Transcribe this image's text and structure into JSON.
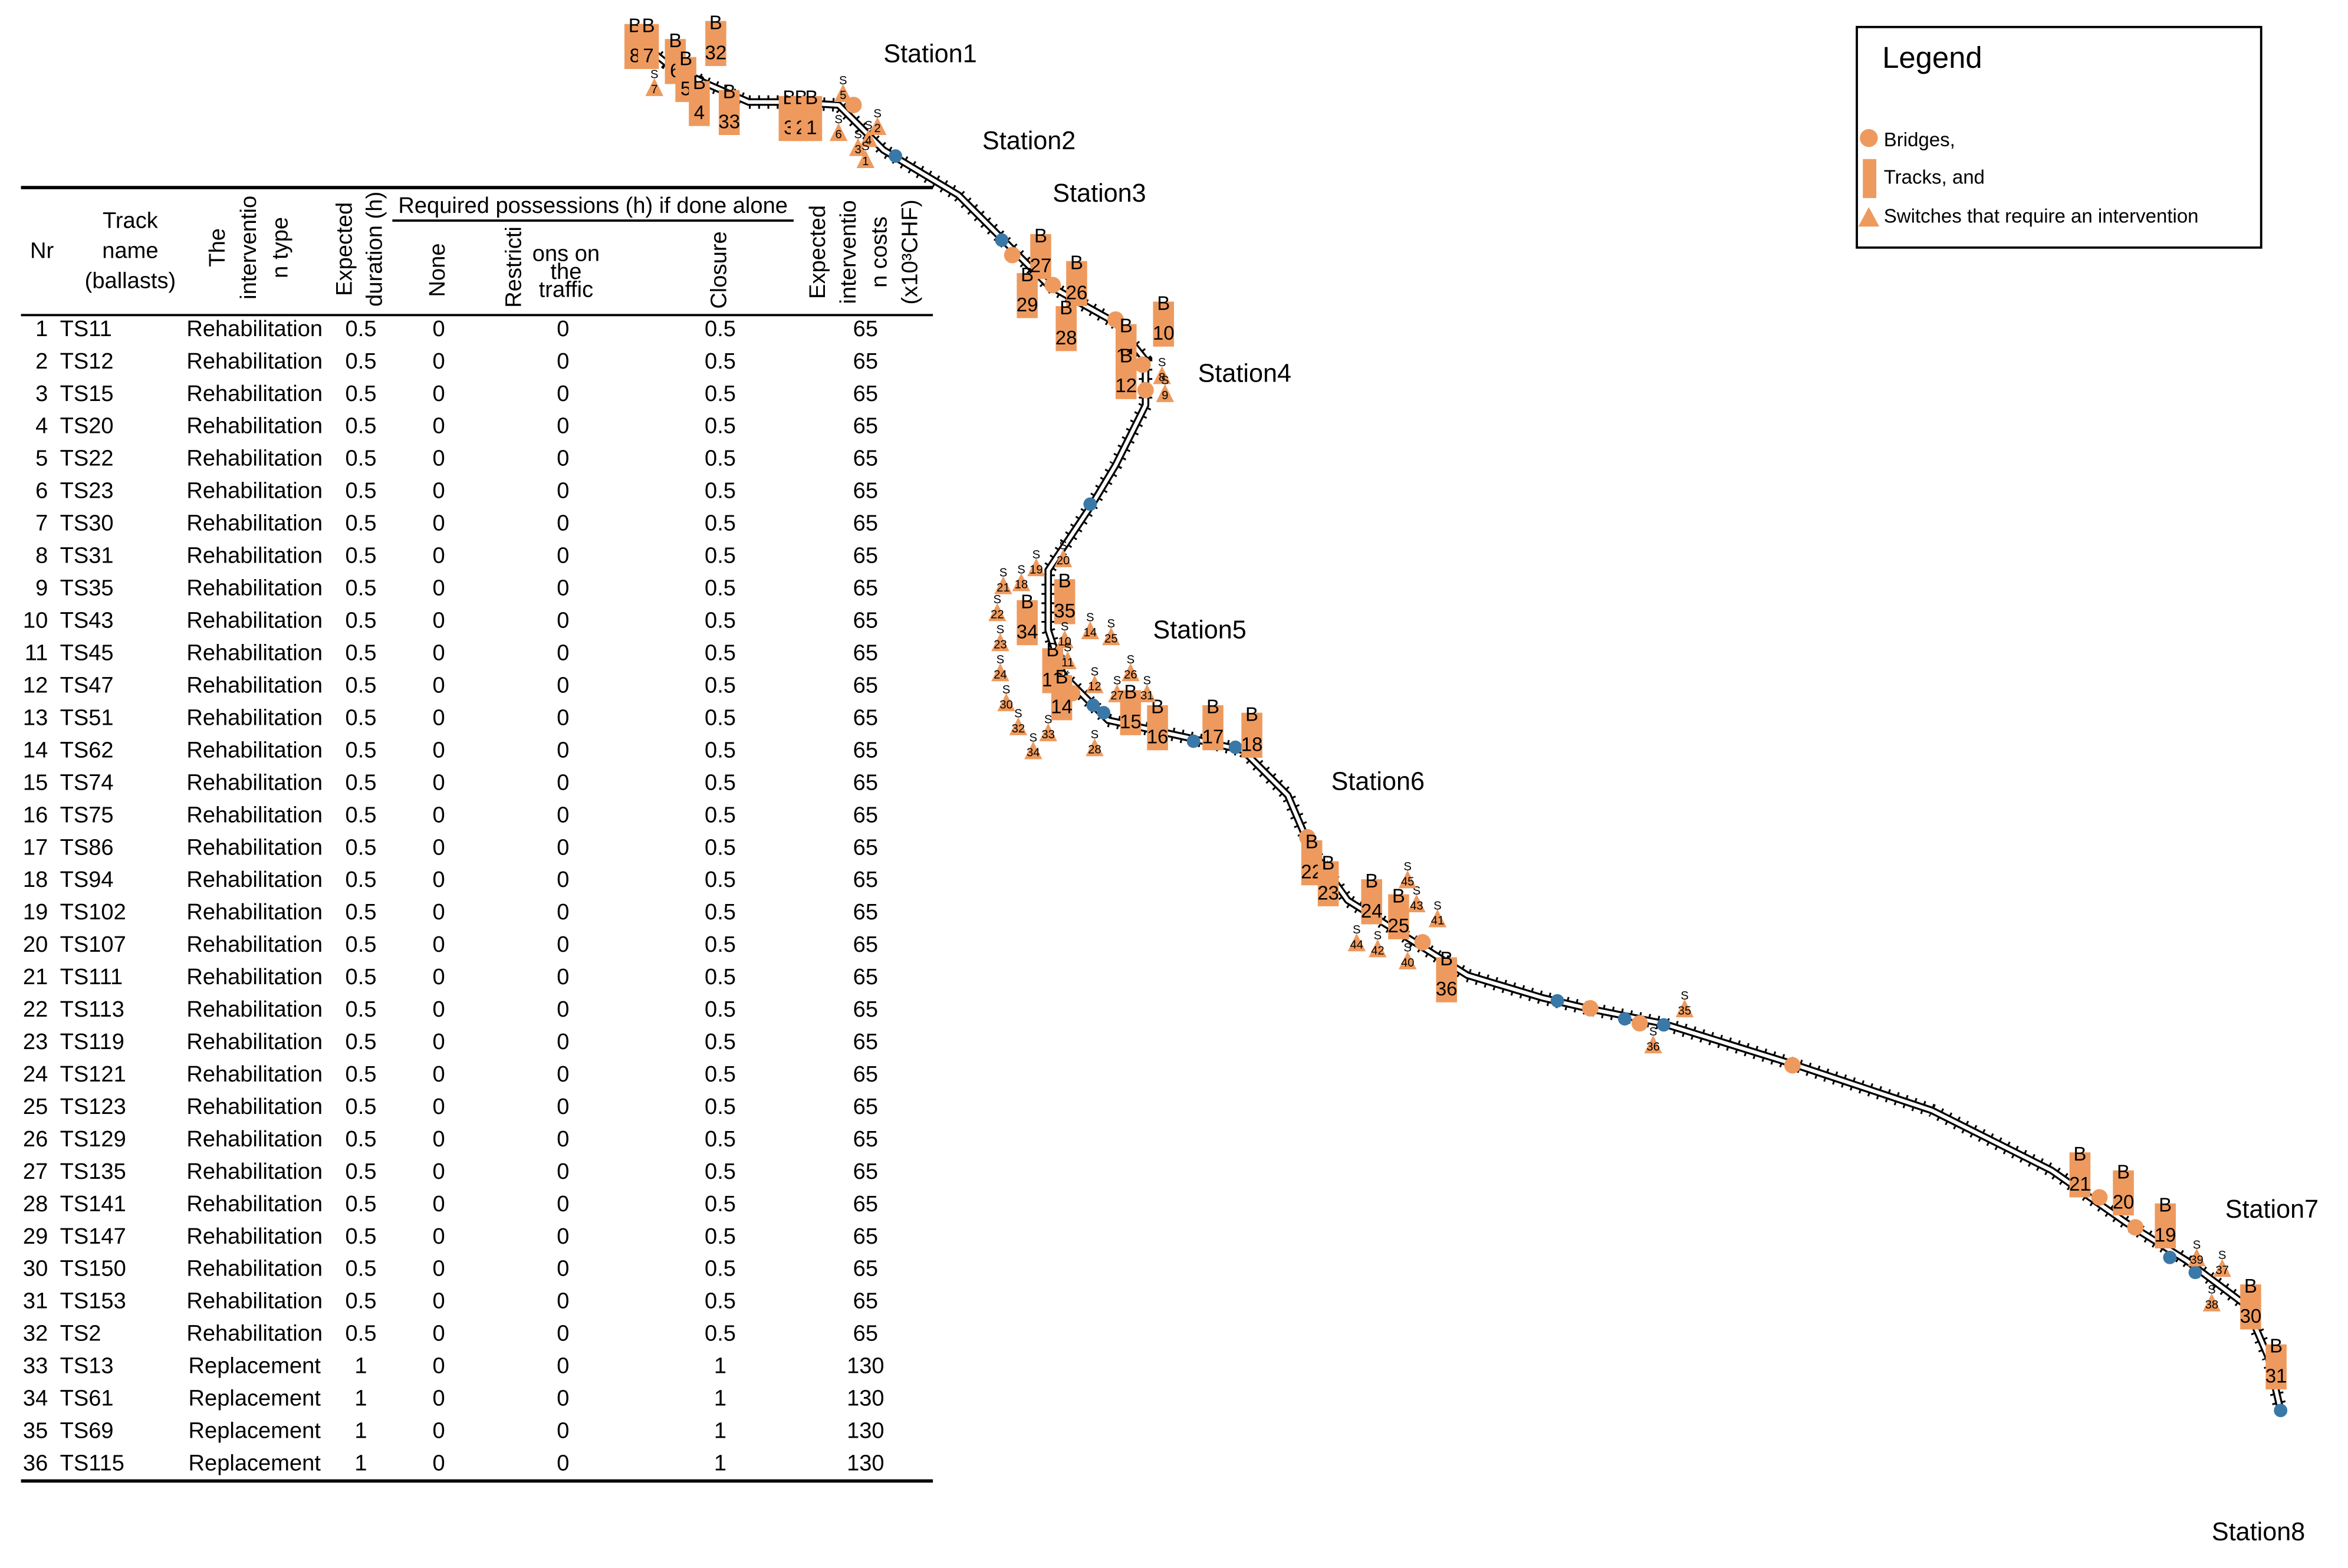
{
  "table": {
    "header": {
      "nr": "Nr",
      "track": [
        "Track",
        "name",
        "(ballasts)"
      ],
      "type": [
        "The",
        "interventio",
        "n type"
      ],
      "duration": [
        "Expected",
        "duration (h)"
      ],
      "group": "Required possessions (h) if done alone",
      "none": "None",
      "restrictions": [
        "Restricti",
        "ons on",
        "the",
        "traffic"
      ],
      "closure": "Closure",
      "cost": [
        "Expected",
        "interventio",
        "n costs",
        "(x10³CHF)"
      ]
    },
    "rows": [
      [
        1,
        "TS11",
        "Rehabilitation",
        0.5,
        0,
        0,
        0.5,
        65
      ],
      [
        2,
        "TS12",
        "Rehabilitation",
        0.5,
        0,
        0,
        0.5,
        65
      ],
      [
        3,
        "TS15",
        "Rehabilitation",
        0.5,
        0,
        0,
        0.5,
        65
      ],
      [
        4,
        "TS20",
        "Rehabilitation",
        0.5,
        0,
        0,
        0.5,
        65
      ],
      [
        5,
        "TS22",
        "Rehabilitation",
        0.5,
        0,
        0,
        0.5,
        65
      ],
      [
        6,
        "TS23",
        "Rehabilitation",
        0.5,
        0,
        0,
        0.5,
        65
      ],
      [
        7,
        "TS30",
        "Rehabilitation",
        0.5,
        0,
        0,
        0.5,
        65
      ],
      [
        8,
        "TS31",
        "Rehabilitation",
        0.5,
        0,
        0,
        0.5,
        65
      ],
      [
        9,
        "TS35",
        "Rehabilitation",
        0.5,
        0,
        0,
        0.5,
        65
      ],
      [
        10,
        "TS43",
        "Rehabilitation",
        0.5,
        0,
        0,
        0.5,
        65
      ],
      [
        11,
        "TS45",
        "Rehabilitation",
        0.5,
        0,
        0,
        0.5,
        65
      ],
      [
        12,
        "TS47",
        "Rehabilitation",
        0.5,
        0,
        0,
        0.5,
        65
      ],
      [
        13,
        "TS51",
        "Rehabilitation",
        0.5,
        0,
        0,
        0.5,
        65
      ],
      [
        14,
        "TS62",
        "Rehabilitation",
        0.5,
        0,
        0,
        0.5,
        65
      ],
      [
        15,
        "TS74",
        "Rehabilitation",
        0.5,
        0,
        0,
        0.5,
        65
      ],
      [
        16,
        "TS75",
        "Rehabilitation",
        0.5,
        0,
        0,
        0.5,
        65
      ],
      [
        17,
        "TS86",
        "Rehabilitation",
        0.5,
        0,
        0,
        0.5,
        65
      ],
      [
        18,
        "TS94",
        "Rehabilitation",
        0.5,
        0,
        0,
        0.5,
        65
      ],
      [
        19,
        "TS102",
        "Rehabilitation",
        0.5,
        0,
        0,
        0.5,
        65
      ],
      [
        20,
        "TS107",
        "Rehabilitation",
        0.5,
        0,
        0,
        0.5,
        65
      ],
      [
        21,
        "TS111",
        "Rehabilitation",
        0.5,
        0,
        0,
        0.5,
        65
      ],
      [
        22,
        "TS113",
        "Rehabilitation",
        0.5,
        0,
        0,
        0.5,
        65
      ],
      [
        23,
        "TS119",
        "Rehabilitation",
        0.5,
        0,
        0,
        0.5,
        65
      ],
      [
        24,
        "TS121",
        "Rehabilitation",
        0.5,
        0,
        0,
        0.5,
        65
      ],
      [
        25,
        "TS123",
        "Rehabilitation",
        0.5,
        0,
        0,
        0.5,
        65
      ],
      [
        26,
        "TS129",
        "Rehabilitation",
        0.5,
        0,
        0,
        0.5,
        65
      ],
      [
        27,
        "TS135",
        "Rehabilitation",
        0.5,
        0,
        0,
        0.5,
        65
      ],
      [
        28,
        "TS141",
        "Rehabilitation",
        0.5,
        0,
        0,
        0.5,
        65
      ],
      [
        29,
        "TS147",
        "Rehabilitation",
        0.5,
        0,
        0,
        0.5,
        65
      ],
      [
        30,
        "TS150",
        "Rehabilitation",
        0.5,
        0,
        0,
        0.5,
        65
      ],
      [
        31,
        "TS153",
        "Rehabilitation",
        0.5,
        0,
        0,
        0.5,
        65
      ],
      [
        32,
        "TS2",
        "Rehabilitation",
        0.5,
        0,
        0,
        0.5,
        65
      ],
      [
        33,
        "TS13",
        "Replacement",
        1,
        0,
        0,
        1,
        130
      ],
      [
        34,
        "TS61",
        "Replacement",
        1,
        0,
        0,
        1,
        130
      ],
      [
        35,
        "TS69",
        "Replacement",
        1,
        0,
        0,
        1,
        130
      ],
      [
        36,
        "TS115",
        "Replacement",
        1,
        0,
        0,
        1,
        130
      ]
    ]
  },
  "legend": {
    "title": "Legend",
    "items": [
      "Bridges,",
      "Tracks, and",
      "Switches that require an intervention"
    ]
  },
  "stations": [
    "Station1",
    "Station2",
    "Station3",
    "Station4",
    "Station5",
    "Station6",
    "Station7",
    "Station8"
  ],
  "map": {
    "track_letter": "B",
    "switch_letter": "S",
    "track_labels": [
      "8",
      "7",
      "6",
      "5",
      "4",
      "32",
      "33",
      "3",
      "2",
      "1",
      "27",
      "29",
      "26",
      "28",
      "10",
      "11",
      "12",
      "35",
      "34",
      "13",
      "14",
      "15",
      "16",
      "17",
      "18",
      "22",
      "23",
      "24",
      "25",
      "36",
      "21",
      "20",
      "19",
      "30",
      "31"
    ],
    "switch_labels": [
      "7",
      "5",
      "4",
      "6",
      "3",
      "2",
      "1",
      "8",
      "9",
      "18",
      "19",
      "20",
      "21",
      "22",
      "23",
      "24",
      "10",
      "11",
      "12",
      "14",
      "25",
      "26",
      "27",
      "30",
      "31",
      "32",
      "33",
      "34",
      "28",
      "40",
      "41",
      "42",
      "43",
      "44",
      "45",
      "35",
      "36",
      "37",
      "38",
      "39"
    ]
  }
}
